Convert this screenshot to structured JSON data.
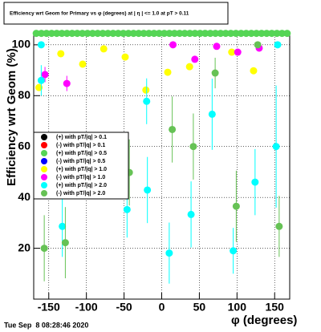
{
  "chart_data": {
    "type": "scatter",
    "title": "Efficiency wrt Geom for Primary vs φ (degrees) at | η | <= 1.0 at pT > 0.11",
    "x_label": "φ (degrees)",
    "y_label": "Efficiency wrt Geom (%)",
    "timestamp": "Tue Sep  8 08:28:46 2020",
    "xlim": [
      -170,
      170
    ],
    "ylim": [
      0,
      105
    ],
    "xticks": [
      -150,
      -100,
      -50,
      0,
      50,
      100,
      150
    ],
    "yticks": [
      20,
      40,
      60,
      80,
      100
    ],
    "grid": true,
    "series": [
      {
        "name": "(+) with pT/|q| > 0.1",
        "color": "#000000"
      },
      {
        "name": "(-) with pT/|q| > 0.1",
        "color": "#ff0000"
      },
      {
        "name": "(+) with pT/|q| > 0.5",
        "color": "#55d555",
        "x": [
          -166.6,
          -159.8,
          -153.0,
          -146.2,
          -139.4,
          -132.6,
          -125.8,
          -119.0,
          -112.2,
          -105.4,
          -98.6,
          -91.8,
          -85.0,
          -78.2,
          -71.4,
          -64.6,
          -57.8,
          -51.0,
          -44.2,
          -37.4,
          -30.6,
          -23.8,
          -17.0,
          -10.2,
          -3.4,
          3.4,
          10.2,
          17.0,
          23.8,
          30.6,
          37.4,
          44.2,
          51.0,
          57.8,
          64.6,
          71.4,
          78.2,
          85.0,
          91.8,
          98.6,
          105.4,
          112.2,
          119.0,
          125.8,
          132.6,
          139.4,
          146.2,
          153.0,
          159.8,
          166.6
        ],
        "values": [
          104.5,
          104.5,
          104.5,
          104.5,
          104.5,
          104.5,
          104.5,
          104.5,
          104.5,
          104.5,
          104.5,
          104.5,
          104.5,
          104.5,
          104.5,
          104.5,
          104.5,
          104.5,
          104.5,
          104.5,
          104.5,
          104.5,
          104.5,
          104.5,
          104.5,
          104.5,
          104.5,
          104.5,
          104.5,
          104.5,
          104.5,
          104.5,
          104.5,
          104.5,
          104.5,
          104.5,
          104.5,
          104.5,
          104.5,
          104.5,
          104.5,
          104.5,
          104.5,
          104.5,
          104.5,
          104.5,
          104.5,
          104.5,
          104.5,
          104.5
        ]
      },
      {
        "name": "(-) with pT/|q| > 0.5",
        "color": "#0000ff"
      },
      {
        "name": "(+) with pT/|q| > 1.0",
        "color": "#ffff00",
        "x": [
          -163,
          -134,
          -105,
          -77,
          -48.5,
          -21,
          8,
          37,
          93,
          122
        ],
        "values": [
          83.2,
          96.5,
          92.4,
          98.4,
          95.2,
          82.2,
          89.2,
          91.4,
          97.1,
          89.8
        ]
      },
      {
        "name": "(-) with pT/|q| > 1.0",
        "color": "#ff00ff",
        "x": [
          -155,
          -126,
          15,
          44,
          73,
          101,
          129.5
        ],
        "values": [
          88.3,
          84.8,
          100,
          94.3,
          99.4,
          97.1,
          98.7
        ],
        "errors": [
          3,
          3,
          0,
          0,
          0,
          0,
          0
        ]
      },
      {
        "name": "(+) with pT/|q| > 2.0",
        "color": "#00ffff",
        "x": [
          -160,
          -160,
          -132,
          -46,
          -20,
          -19,
          10,
          39,
          67,
          95,
          124,
          152,
          154
        ],
        "values": [
          86,
          100,
          28.6,
          35.2,
          77.8,
          42.9,
          18.1,
          33.3,
          72.7,
          19,
          46,
          60,
          100
        ],
        "errors": [
          6,
          0,
          12,
          11,
          9,
          13,
          12,
          13,
          14,
          9,
          13,
          24,
          0
        ]
      },
      {
        "name": "(-) with pT/|q| > 2.0",
        "color": "#66c255",
        "x": [
          -156,
          -128,
          -43,
          14,
          42,
          71,
          99,
          127.5,
          156
        ],
        "values": [
          20,
          22.2,
          49.8,
          66.7,
          60,
          88.9,
          36.5,
          100,
          28.6
        ],
        "errors": [
          13,
          14,
          13,
          13,
          13,
          6,
          14,
          0,
          12
        ]
      }
    ]
  }
}
